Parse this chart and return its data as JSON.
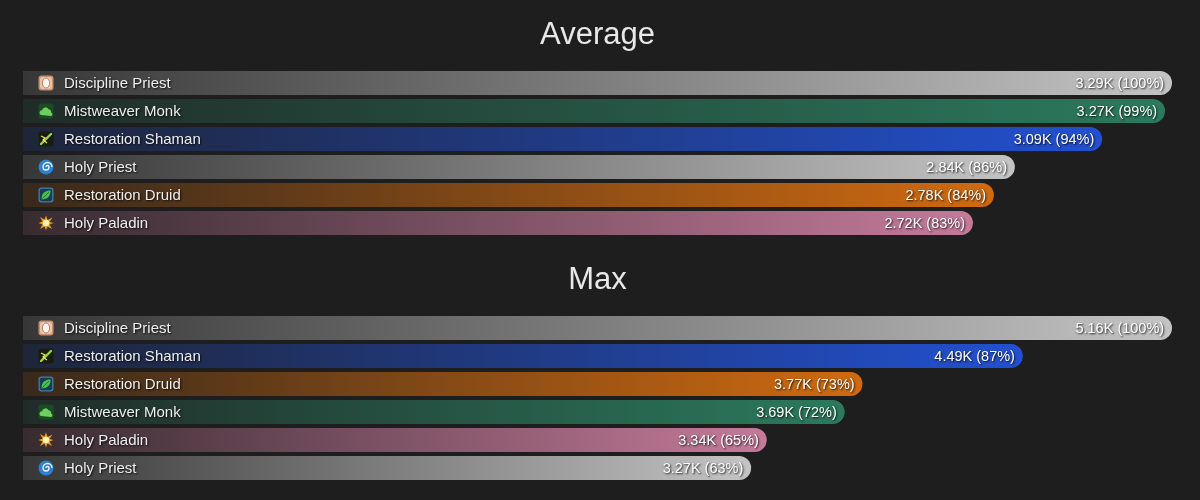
{
  "chart_data": [
    {
      "type": "bar",
      "orientation": "horizontal",
      "title": "Average",
      "tick_labels": "y",
      "categories": [
        "Discipline Priest",
        "Mistweaver Monk",
        "Restoration Shaman",
        "Holy Priest",
        "Restoration Druid",
        "Holy Paladin"
      ],
      "values": [
        3290,
        3270,
        3090,
        2840,
        2780,
        2720
      ],
      "colors": [
        "#c4c4c4",
        "#2b7a5e",
        "#2250d0",
        "#c4c4c4",
        "#d06a10",
        "#c57a9a"
      ],
      "value_labels": [
        "3.29K (100%)",
        "3.27K (99%)",
        "3.09K (94%)",
        "2.84K (86%)",
        "2.78K (84%)",
        "2.72K (83%)"
      ]
    },
    {
      "type": "bar",
      "orientation": "horizontal",
      "title": "Max",
      "tick_labels": "y",
      "categories": [
        "Discipline Priest",
        "Restoration Shaman",
        "Restoration Druid",
        "Mistweaver Monk",
        "Holy Paladin",
        "Holy Priest"
      ],
      "values": [
        5160,
        4490,
        3770,
        3690,
        3340,
        3270
      ],
      "colors": [
        "#c4c4c4",
        "#2250d0",
        "#d06a10",
        "#2b7a5e",
        "#c57a9a",
        "#c4c4c4"
      ],
      "value_labels": [
        "5.16K (100%)",
        "4.49K (87%)",
        "3.77K (73%)",
        "3.69K (72%)",
        "3.34K (65%)",
        "3.27K (63%)"
      ]
    }
  ]
}
